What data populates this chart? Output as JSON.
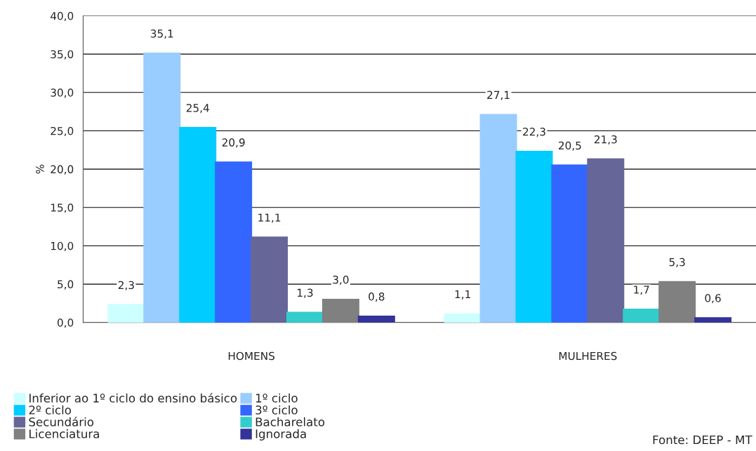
{
  "chart_data": {
    "type": "bar",
    "ylabel": "%",
    "categories": [
      "HOMENS",
      "MULHERES"
    ],
    "series": [
      {
        "name": "Inferior ao 1º ciclo do ensino básico",
        "color": "#ccffff",
        "values": [
          2.3,
          1.1
        ],
        "value_labels": [
          "2,3",
          "1,1"
        ]
      },
      {
        "name": "1º ciclo",
        "color": "#99ccff",
        "values": [
          35.1,
          27.1
        ],
        "value_labels": [
          "35,1",
          "27,1"
        ]
      },
      {
        "name": "2º ciclo",
        "color": "#00ccff",
        "values": [
          25.4,
          22.3
        ],
        "value_labels": [
          "25,4",
          "22,3"
        ]
      },
      {
        "name": "3º ciclo",
        "color": "#3366ff",
        "values": [
          20.9,
          20.5
        ],
        "value_labels": [
          "20,9",
          "20,5"
        ]
      },
      {
        "name": "Secundário",
        "color": "#666699",
        "values": [
          11.1,
          21.3
        ],
        "value_labels": [
          "11,1",
          "21,3"
        ]
      },
      {
        "name": "Bacharelato",
        "color": "#33cccc",
        "values": [
          1.3,
          1.7
        ],
        "value_labels": [
          "1,3",
          "1,7"
        ]
      },
      {
        "name": "Licenciatura",
        "color": "#808080",
        "values": [
          3.0,
          5.3
        ],
        "value_labels": [
          "3,0",
          "5,3"
        ]
      },
      {
        "name": "Ignorada",
        "color": "#333399",
        "values": [
          0.8,
          0.6
        ],
        "value_labels": [
          "0,8",
          "0,6"
        ]
      }
    ],
    "ylim": [
      0,
      40
    ],
    "yticks": [
      {
        "value": 0,
        "label": "0,0"
      },
      {
        "value": 5,
        "label": "5,0"
      },
      {
        "value": 10,
        "label": "10,0"
      },
      {
        "value": 15,
        "label": "15,0"
      },
      {
        "value": 20,
        "label": "20,0"
      },
      {
        "value": 25,
        "label": "25,0"
      },
      {
        "value": 30,
        "label": "30,0"
      },
      {
        "value": 35,
        "label": "35,0"
      },
      {
        "value": 40,
        "label": "40,0"
      }
    ],
    "grid": "y",
    "legend": "bottom left",
    "annotations": [
      "Fonte: DEEP - MT"
    ]
  }
}
